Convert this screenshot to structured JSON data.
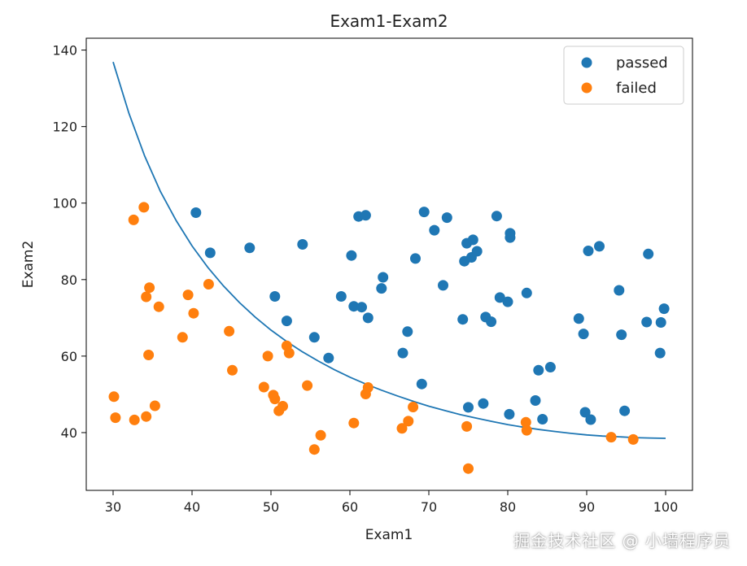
{
  "colors": {
    "passed": "#1f77b4",
    "failed": "#ff7f0e",
    "boundary": "#1f77b4",
    "axis": "#000000"
  },
  "watermark": "掘金技术社区 @ 小墙程序员",
  "chart_data": {
    "type": "scatter",
    "title": "Exam1-Exam2",
    "xlabel": "Exam1",
    "ylabel": "Exam2",
    "xlim": [
      26.6,
      103.4
    ],
    "ylim": [
      24.9,
      143.1
    ],
    "xticks": [
      30,
      40,
      50,
      60,
      70,
      80,
      90,
      100
    ],
    "yticks": [
      40,
      60,
      80,
      100,
      120,
      140
    ],
    "legend": {
      "location": "top-right",
      "entries": [
        "passed",
        "failed"
      ]
    },
    "series": [
      {
        "name": "passed",
        "type": "scatter",
        "points": [
          [
            40.5,
            97.5
          ],
          [
            42.3,
            87.0
          ],
          [
            47.3,
            88.3
          ],
          [
            50.5,
            75.6
          ],
          [
            52.0,
            69.2
          ],
          [
            54.0,
            89.2
          ],
          [
            55.5,
            64.9
          ],
          [
            57.3,
            59.5
          ],
          [
            58.9,
            75.6
          ],
          [
            60.2,
            86.3
          ],
          [
            60.5,
            73.0
          ],
          [
            61.1,
            96.5
          ],
          [
            61.5,
            72.8
          ],
          [
            62.0,
            96.8
          ],
          [
            62.3,
            70.0
          ],
          [
            64.0,
            77.7
          ],
          [
            64.2,
            80.6
          ],
          [
            66.7,
            60.8
          ],
          [
            67.3,
            66.4
          ],
          [
            68.3,
            85.5
          ],
          [
            69.1,
            52.7
          ],
          [
            69.4,
            97.7
          ],
          [
            70.7,
            92.9
          ],
          [
            71.8,
            78.5
          ],
          [
            72.3,
            96.2
          ],
          [
            74.3,
            69.6
          ],
          [
            74.5,
            84.8
          ],
          [
            74.8,
            89.5
          ],
          [
            75.0,
            46.6
          ],
          [
            75.4,
            85.8
          ],
          [
            75.6,
            90.4
          ],
          [
            76.1,
            87.4
          ],
          [
            76.9,
            47.6
          ],
          [
            77.2,
            70.2
          ],
          [
            77.9,
            69.0
          ],
          [
            78.6,
            96.6
          ],
          [
            79.0,
            75.3
          ],
          [
            80.0,
            74.2
          ],
          [
            80.2,
            44.8
          ],
          [
            80.3,
            92.1
          ],
          [
            80.3,
            91.0
          ],
          [
            82.4,
            76.5
          ],
          [
            83.5,
            48.4
          ],
          [
            83.9,
            56.3
          ],
          [
            84.4,
            43.5
          ],
          [
            85.4,
            57.1
          ],
          [
            89.0,
            69.8
          ],
          [
            89.6,
            65.8
          ],
          [
            89.8,
            45.3
          ],
          [
            90.2,
            87.5
          ],
          [
            90.5,
            43.4
          ],
          [
            91.6,
            88.7
          ],
          [
            94.1,
            77.2
          ],
          [
            94.4,
            65.6
          ],
          [
            94.8,
            45.7
          ],
          [
            97.6,
            68.9
          ],
          [
            97.8,
            86.7
          ],
          [
            99.3,
            60.8
          ],
          [
            99.4,
            68.8
          ],
          [
            99.8,
            72.4
          ]
        ]
      },
      {
        "name": "failed",
        "type": "scatter",
        "points": [
          [
            30.1,
            49.4
          ],
          [
            30.3,
            43.9
          ],
          [
            32.6,
            95.6
          ],
          [
            32.7,
            43.3
          ],
          [
            33.9,
            98.9
          ],
          [
            34.2,
            44.2
          ],
          [
            34.2,
            75.5
          ],
          [
            34.5,
            60.3
          ],
          [
            34.6,
            77.9
          ],
          [
            35.3,
            47.0
          ],
          [
            35.8,
            72.9
          ],
          [
            38.8,
            64.9
          ],
          [
            39.5,
            76.0
          ],
          [
            40.2,
            71.2
          ],
          [
            42.1,
            78.8
          ],
          [
            44.7,
            66.5
          ],
          [
            45.1,
            56.3
          ],
          [
            49.1,
            51.9
          ],
          [
            49.6,
            60.0
          ],
          [
            50.3,
            49.8
          ],
          [
            50.5,
            48.8
          ],
          [
            51.0,
            45.7
          ],
          [
            51.5,
            46.9
          ],
          [
            52.0,
            62.7
          ],
          [
            52.3,
            60.8
          ],
          [
            54.6,
            52.3
          ],
          [
            55.5,
            35.6
          ],
          [
            56.3,
            39.3
          ],
          [
            60.5,
            42.5
          ],
          [
            62.0,
            50.1
          ],
          [
            62.3,
            51.8
          ],
          [
            66.6,
            41.1
          ],
          [
            67.4,
            43.0
          ],
          [
            68.0,
            46.7
          ],
          [
            74.8,
            41.6
          ],
          [
            75.0,
            30.6
          ],
          [
            82.3,
            42.7
          ],
          [
            82.4,
            40.6
          ],
          [
            93.1,
            38.8
          ],
          [
            95.9,
            38.2
          ]
        ]
      },
      {
        "name": "decision boundary",
        "type": "line",
        "points": [
          [
            30,
            136.9
          ],
          [
            32,
            123.5
          ],
          [
            34,
            112.3
          ],
          [
            36,
            103.0
          ],
          [
            38,
            95.4
          ],
          [
            40,
            88.8
          ],
          [
            42,
            83.2
          ],
          [
            44,
            78.3
          ],
          [
            46,
            74.0
          ],
          [
            48,
            70.2
          ],
          [
            50,
            66.8
          ],
          [
            52,
            63.8
          ],
          [
            54,
            61.1
          ],
          [
            56,
            58.7
          ],
          [
            58,
            56.5
          ],
          [
            60,
            54.5
          ],
          [
            62,
            52.7
          ],
          [
            64,
            51.1
          ],
          [
            66,
            49.6
          ],
          [
            68,
            48.2
          ],
          [
            70,
            46.9
          ],
          [
            72,
            45.8
          ],
          [
            74,
            44.7
          ],
          [
            76,
            43.8
          ],
          [
            78,
            42.9
          ],
          [
            80,
            42.1
          ],
          [
            82,
            41.4
          ],
          [
            84,
            40.8
          ],
          [
            86,
            40.3
          ],
          [
            88,
            39.8
          ],
          [
            90,
            39.4
          ],
          [
            92,
            39.1
          ],
          [
            94,
            38.9
          ],
          [
            96,
            38.7
          ],
          [
            98,
            38.6
          ],
          [
            100,
            38.5
          ]
        ]
      }
    ]
  }
}
